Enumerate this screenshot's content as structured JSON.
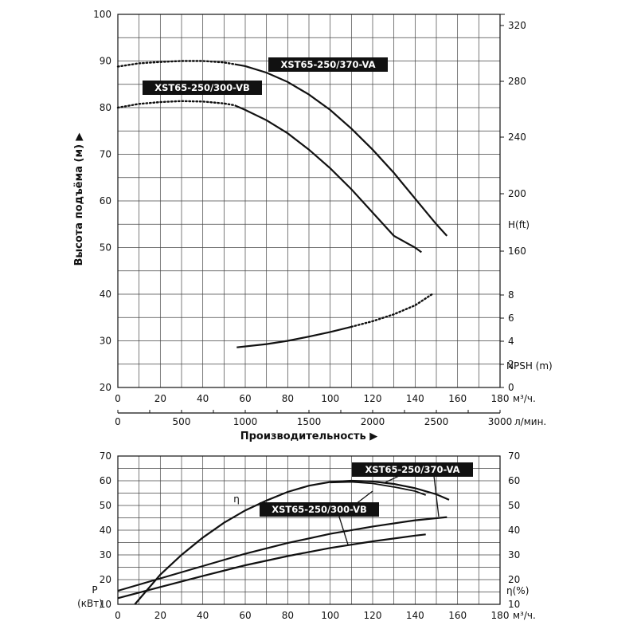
{
  "chart_data": [
    {
      "type": "line",
      "ylabel": "Высота подъёма (м)",
      "ylim": [
        20,
        100
      ],
      "y_ticks": [
        "20",
        "30",
        "40",
        "50",
        "60",
        "70",
        "80",
        "90",
        "100"
      ],
      "xlim": [
        0,
        180
      ],
      "x_ticks": [
        "0",
        "20",
        "40",
        "60",
        "80",
        "100",
        "120",
        "140",
        "160",
        "180"
      ],
      "x_unit": "м³/ч.",
      "x2lim": [
        0,
        3000
      ],
      "x2_ticks": [
        "0",
        "500",
        "1000",
        "1500",
        "2000",
        "2500",
        "3000"
      ],
      "x2_unit": "л/мин.",
      "xlabel": "Производительность",
      "right_h_ticks": [
        "160",
        "200",
        "240",
        "280",
        "320"
      ],
      "right_h_label": "H(ft)",
      "right_npsh_ticks": [
        "0",
        "2",
        "4",
        "6",
        "8"
      ],
      "right_npsh_label": "NPSH (m)",
      "grid": true,
      "series": [
        {
          "name": "XST65-250/370-VA",
          "kind": "head",
          "x": [
            0,
            10,
            20,
            30,
            40,
            50,
            55,
            60,
            70,
            80,
            90,
            100,
            110,
            120,
            130,
            140,
            150,
            155
          ],
          "y": [
            88.8,
            89.5,
            89.8,
            90,
            90,
            89.7,
            89.3,
            88.9,
            87.5,
            85.5,
            82.8,
            79.5,
            75.5,
            71,
            66,
            60.5,
            55,
            52.5
          ]
        },
        {
          "name": "XST65-250/300-VB",
          "kind": "head",
          "x": [
            0,
            10,
            20,
            30,
            40,
            50,
            55,
            60,
            70,
            80,
            90,
            100,
            110,
            120,
            130,
            140,
            143
          ],
          "y": [
            80,
            80.8,
            81.2,
            81.4,
            81.3,
            80.9,
            80.5,
            79.5,
            77.3,
            74.5,
            71,
            67,
            62.5,
            57.5,
            52.5,
            50,
            49
          ]
        },
        {
          "name": "",
          "kind": "npsh",
          "x": [
            56,
            70,
            80,
            90,
            100,
            110,
            120,
            130,
            140,
            148
          ],
          "y": [
            28.6,
            29.3,
            30,
            30.9,
            31.9,
            33,
            34.2,
            35.7,
            37.6,
            40
          ]
        }
      ]
    },
    {
      "type": "line",
      "xlim": [
        0,
        180
      ],
      "x_ticks": [
        "0",
        "20",
        "40",
        "60",
        "80",
        "100",
        "120",
        "140",
        "160",
        "180"
      ],
      "x_unit": "м³/ч.",
      "ylim": [
        10,
        70
      ],
      "y_ticks": [
        "10",
        "20",
        "30",
        "40",
        "50",
        "60",
        "70"
      ],
      "y_label_lines": [
        "P",
        "(кВт)"
      ],
      "right_ticks": [
        "10",
        "20",
        "30",
        "40",
        "50",
        "60",
        "70"
      ],
      "right_label": "η(%)",
      "eta_symbol": "η",
      "grid": true,
      "series": [
        {
          "name": "",
          "kind": "efficiency",
          "x": [
            8,
            20,
            30,
            40,
            50,
            60,
            70,
            80,
            90,
            100,
            110,
            120,
            130,
            140,
            150,
            156
          ],
          "y": [
            10,
            22,
            30,
            37,
            43,
            48,
            52,
            55.5,
            58,
            59.5,
            60,
            59.7,
            58.7,
            57,
            54.5,
            52.3
          ]
        },
        {
          "name": "XST65-250/370-VA",
          "kind": "power",
          "x": [
            0,
            20,
            40,
            60,
            80,
            100,
            120,
            140,
            155
          ],
          "y": [
            15.5,
            20.5,
            25.5,
            30.5,
            34.8,
            38.5,
            41.5,
            44,
            45.3
          ]
        },
        {
          "name": "XST65-250/300-VB",
          "kind": "power",
          "x": [
            0,
            20,
            40,
            60,
            80,
            100,
            120,
            140,
            145
          ],
          "y": [
            12.5,
            17,
            21.5,
            25.8,
            29.5,
            32.8,
            35.5,
            37.8,
            38.3
          ]
        }
      ]
    }
  ],
  "labels": {
    "top_va": "XST65-250/370-VA",
    "top_vb": "XST65-250/300-VB",
    "bottom_va": "XST65-250/370-VA",
    "bottom_vb": "XST65-250/300-VB"
  }
}
